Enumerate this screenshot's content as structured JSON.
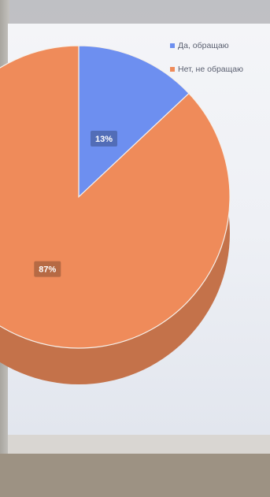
{
  "chart_data": {
    "type": "pie",
    "categories": [
      "Да, обращаю",
      "Нет, не обращаю"
    ],
    "values": [
      13,
      87
    ],
    "data_labels": [
      "13%",
      "87%"
    ],
    "colors": [
      "#6d8ff0",
      "#ef8b5a"
    ],
    "legend_position": "top-right",
    "style": "3d"
  }
}
